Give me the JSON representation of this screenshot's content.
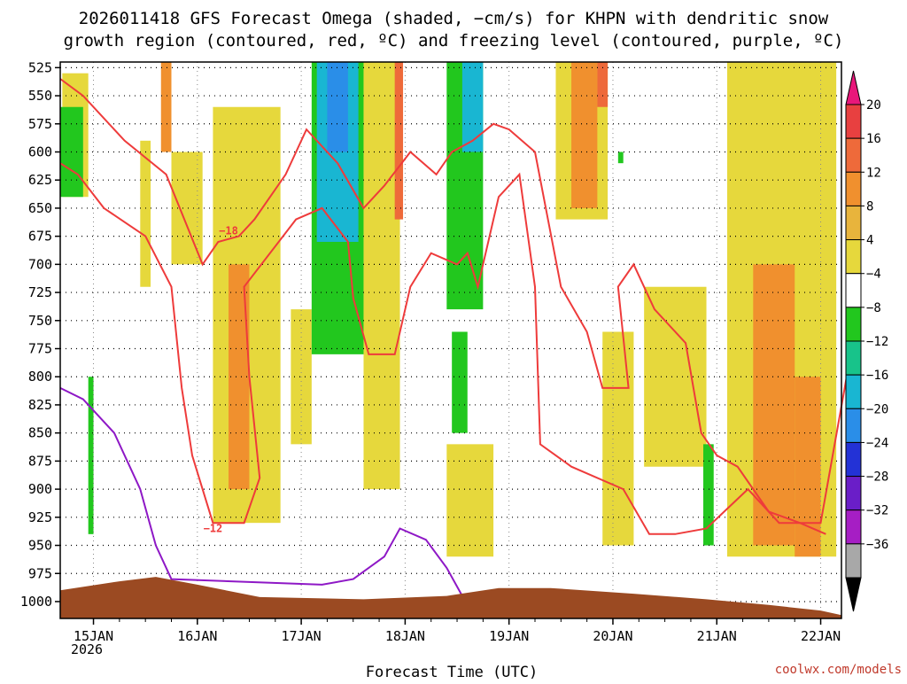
{
  "chart_data": {
    "type": "heatmap",
    "title": "2026011418 GFS Forecast Omega (shaded, −cm/s) for KHPN with dendritic snow growth region (contoured, red, ºC) and freezing level (contoured, purple, ºC)",
    "title_lines": [
      "2026011418 GFS Forecast Omega (shaded, −cm/s) for KHPN with dendritic snow",
      "growth region (contoured, red, ºC) and freezing level (contoured, purple, ºC)"
    ],
    "xlabel": "Forecast Time (UTC)",
    "ylabel": "",
    "x_tick_labels": [
      "15JAN",
      "16JAN",
      "17JAN",
      "18JAN",
      "19JAN",
      "20JAN",
      "21JAN",
      "22JAN"
    ],
    "x_tick_sublabel": "2026",
    "x_range_days": [
      14.68,
      22.2
    ],
    "y_tick_labels": [
      "525",
      "550",
      "575",
      "600",
      "625",
      "650",
      "675",
      "700",
      "725",
      "750",
      "775",
      "800",
      "825",
      "850",
      "875",
      "900",
      "925",
      "950",
      "975",
      "1000"
    ],
    "y_range_hpa": [
      520,
      1015
    ],
    "colorbar": {
      "labels": [
        "20",
        "16",
        "12",
        "8",
        "4",
        "−4",
        "−8",
        "−12",
        "−16",
        "−20",
        "−24",
        "−28",
        "−32",
        "−36"
      ],
      "bins": [
        {
          "color": "#e8177a"
        },
        {
          "color": "#e84040"
        },
        {
          "color": "#ee6a3a"
        },
        {
          "color": "#f0902e"
        },
        {
          "color": "#e8b43c"
        },
        {
          "color": "#e6d83c"
        },
        {
          "color": "#ffffff"
        },
        {
          "color": "#22c71e"
        },
        {
          "color": "#18c38a"
        },
        {
          "color": "#19b6d2"
        },
        {
          "color": "#2a8ee8"
        },
        {
          "color": "#2332d6"
        },
        {
          "color": "#6a1ec8"
        },
        {
          "color": "#a61ec4"
        },
        {
          "color": "#a8a8a8"
        },
        {
          "color": "#000000"
        }
      ]
    },
    "omega_regions": [
      {
        "value": 4,
        "t0": 14.7,
        "t1": 14.95,
        "p0": 530,
        "p1": 640
      },
      {
        "value": -6,
        "t0": 14.68,
        "t1": 14.9,
        "p0": 560,
        "p1": 640
      },
      {
        "value": -6,
        "t0": 14.95,
        "t1": 15.0,
        "p0": 800,
        "p1": 940
      },
      {
        "value": 4,
        "t0": 15.45,
        "t1": 15.55,
        "p0": 590,
        "p1": 720
      },
      {
        "value": 8,
        "t0": 15.65,
        "t1": 15.75,
        "p0": 520,
        "p1": 600
      },
      {
        "value": 4,
        "t0": 15.75,
        "t1": 16.05,
        "p0": 600,
        "p1": 700
      },
      {
        "value": 4,
        "t0": 16.15,
        "t1": 16.8,
        "p0": 560,
        "p1": 930
      },
      {
        "value": 8,
        "t0": 16.3,
        "t1": 16.5,
        "p0": 700,
        "p1": 900
      },
      {
        "value": 4,
        "t0": 16.9,
        "t1": 17.1,
        "p0": 740,
        "p1": 860
      },
      {
        "value": -6,
        "t0": 17.1,
        "t1": 17.6,
        "p0": 520,
        "p1": 780
      },
      {
        "value": -12,
        "t0": 17.15,
        "t1": 17.55,
        "p0": 520,
        "p1": 680
      },
      {
        "value": -18,
        "t0": 17.25,
        "t1": 17.45,
        "p0": 520,
        "p1": 600
      },
      {
        "value": 4,
        "t0": 17.6,
        "t1": 17.95,
        "p0": 520,
        "p1": 900
      },
      {
        "value": 12,
        "t0": 17.9,
        "t1": 17.98,
        "p0": 520,
        "p1": 660
      },
      {
        "value": -6,
        "t0": 18.4,
        "t1": 18.75,
        "p0": 520,
        "p1": 740
      },
      {
        "value": -14,
        "t0": 18.55,
        "t1": 18.75,
        "p0": 520,
        "p1": 600
      },
      {
        "value": -6,
        "t0": 18.45,
        "t1": 18.6,
        "p0": 760,
        "p1": 850
      },
      {
        "value": 4,
        "t0": 18.4,
        "t1": 18.85,
        "p0": 860,
        "p1": 960
      },
      {
        "value": 4,
        "t0": 19.45,
        "t1": 19.95,
        "p0": 520,
        "p1": 660
      },
      {
        "value": 8,
        "t0": 19.6,
        "t1": 19.85,
        "p0": 520,
        "p1": 650
      },
      {
        "value": 14,
        "t0": 19.85,
        "t1": 19.95,
        "p0": 520,
        "p1": 560
      },
      {
        "value": 4,
        "t0": 19.9,
        "t1": 20.2,
        "p0": 760,
        "p1": 950
      },
      {
        "value": -6,
        "t0": 20.05,
        "t1": 20.1,
        "p0": 600,
        "p1": 610
      },
      {
        "value": 4,
        "t0": 20.3,
        "t1": 20.9,
        "p0": 720,
        "p1": 880
      },
      {
        "value": -6,
        "t0": 20.87,
        "t1": 20.97,
        "p0": 860,
        "p1": 950
      },
      {
        "value": 4,
        "t0": 21.1,
        "t1": 22.15,
        "p0": 520,
        "p1": 960
      },
      {
        "value": 8,
        "t0": 21.35,
        "t1": 21.75,
        "p0": 700,
        "p1": 950
      },
      {
        "value": 8,
        "t0": 21.75,
        "t1": 22.0,
        "p0": 800,
        "p1": 960
      }
    ],
    "dgz_contours": [
      {
        "label": "−12",
        "label_at": [
          16.15,
          935
        ],
        "points": [
          [
            14.68,
            610
          ],
          [
            14.85,
            620
          ],
          [
            15.1,
            650
          ],
          [
            15.5,
            675
          ],
          [
            15.75,
            720
          ],
          [
            15.85,
            810
          ],
          [
            15.95,
            870
          ],
          [
            16.15,
            930
          ],
          [
            16.45,
            930
          ],
          [
            16.6,
            890
          ],
          [
            16.5,
            800
          ],
          [
            16.45,
            720
          ],
          [
            16.95,
            660
          ],
          [
            17.2,
            650
          ],
          [
            17.45,
            680
          ],
          [
            17.5,
            730
          ],
          [
            17.65,
            780
          ],
          [
            17.9,
            780
          ],
          [
            18.05,
            720
          ],
          [
            18.25,
            690
          ],
          [
            18.5,
            700
          ],
          [
            18.6,
            690
          ],
          [
            18.7,
            720
          ],
          [
            18.9,
            640
          ],
          [
            19.1,
            620
          ],
          [
            19.25,
            720
          ],
          [
            19.3,
            860
          ],
          [
            19.6,
            880
          ],
          [
            20.1,
            900
          ],
          [
            20.35,
            940
          ],
          [
            20.6,
            940
          ],
          [
            20.9,
            935
          ],
          [
            21.3,
            900
          ],
          [
            21.6,
            930
          ],
          [
            22.0,
            930
          ],
          [
            22.25,
            800
          ]
        ]
      },
      {
        "label": "−18",
        "label_at": [
          16.3,
          670
        ],
        "points": [
          [
            14.68,
            535
          ],
          [
            14.9,
            550
          ],
          [
            15.3,
            590
          ],
          [
            15.7,
            620
          ],
          [
            16.05,
            700
          ],
          [
            16.2,
            680
          ],
          [
            16.4,
            675
          ],
          [
            16.55,
            660
          ],
          [
            16.85,
            620
          ],
          [
            17.05,
            580
          ],
          [
            17.35,
            610
          ],
          [
            17.6,
            650
          ],
          [
            17.8,
            630
          ],
          [
            18.05,
            600
          ],
          [
            18.3,
            620
          ],
          [
            18.45,
            600
          ],
          [
            18.65,
            590
          ],
          [
            18.85,
            575
          ],
          [
            19.0,
            580
          ],
          [
            19.25,
            600
          ],
          [
            19.5,
            720
          ],
          [
            19.75,
            760
          ],
          [
            19.9,
            810
          ],
          [
            20.15,
            810
          ],
          [
            20.05,
            720
          ],
          [
            20.2,
            700
          ],
          [
            20.4,
            740
          ],
          [
            20.7,
            770
          ],
          [
            20.85,
            850
          ],
          [
            21.0,
            870
          ],
          [
            21.2,
            880
          ],
          [
            21.5,
            920
          ],
          [
            21.8,
            930
          ],
          [
            22.05,
            940
          ]
        ]
      }
    ],
    "freezing_contour": {
      "points": [
        [
          14.68,
          810
        ],
        [
          14.9,
          820
        ],
        [
          15.2,
          850
        ],
        [
          15.45,
          900
        ],
        [
          15.6,
          950
        ],
        [
          15.75,
          980
        ],
        [
          17.2,
          985
        ],
        [
          17.5,
          980
        ],
        [
          17.8,
          960
        ],
        [
          17.95,
          935
        ],
        [
          18.2,
          945
        ],
        [
          18.4,
          970
        ],
        [
          18.55,
          995
        ]
      ]
    },
    "terrain": {
      "color": "#9b4a22",
      "points": [
        [
          14.68,
          990
        ],
        [
          15.25,
          982
        ],
        [
          15.6,
          978
        ],
        [
          16.0,
          985
        ],
        [
          16.6,
          996
        ],
        [
          17.6,
          998
        ],
        [
          18.4,
          995
        ],
        [
          18.9,
          988
        ],
        [
          19.4,
          988
        ],
        [
          20.2,
          993
        ],
        [
          20.9,
          998
        ],
        [
          21.5,
          1003
        ],
        [
          22.0,
          1008
        ],
        [
          22.2,
          1012
        ]
      ]
    },
    "credit": "coolwx.com/models"
  }
}
